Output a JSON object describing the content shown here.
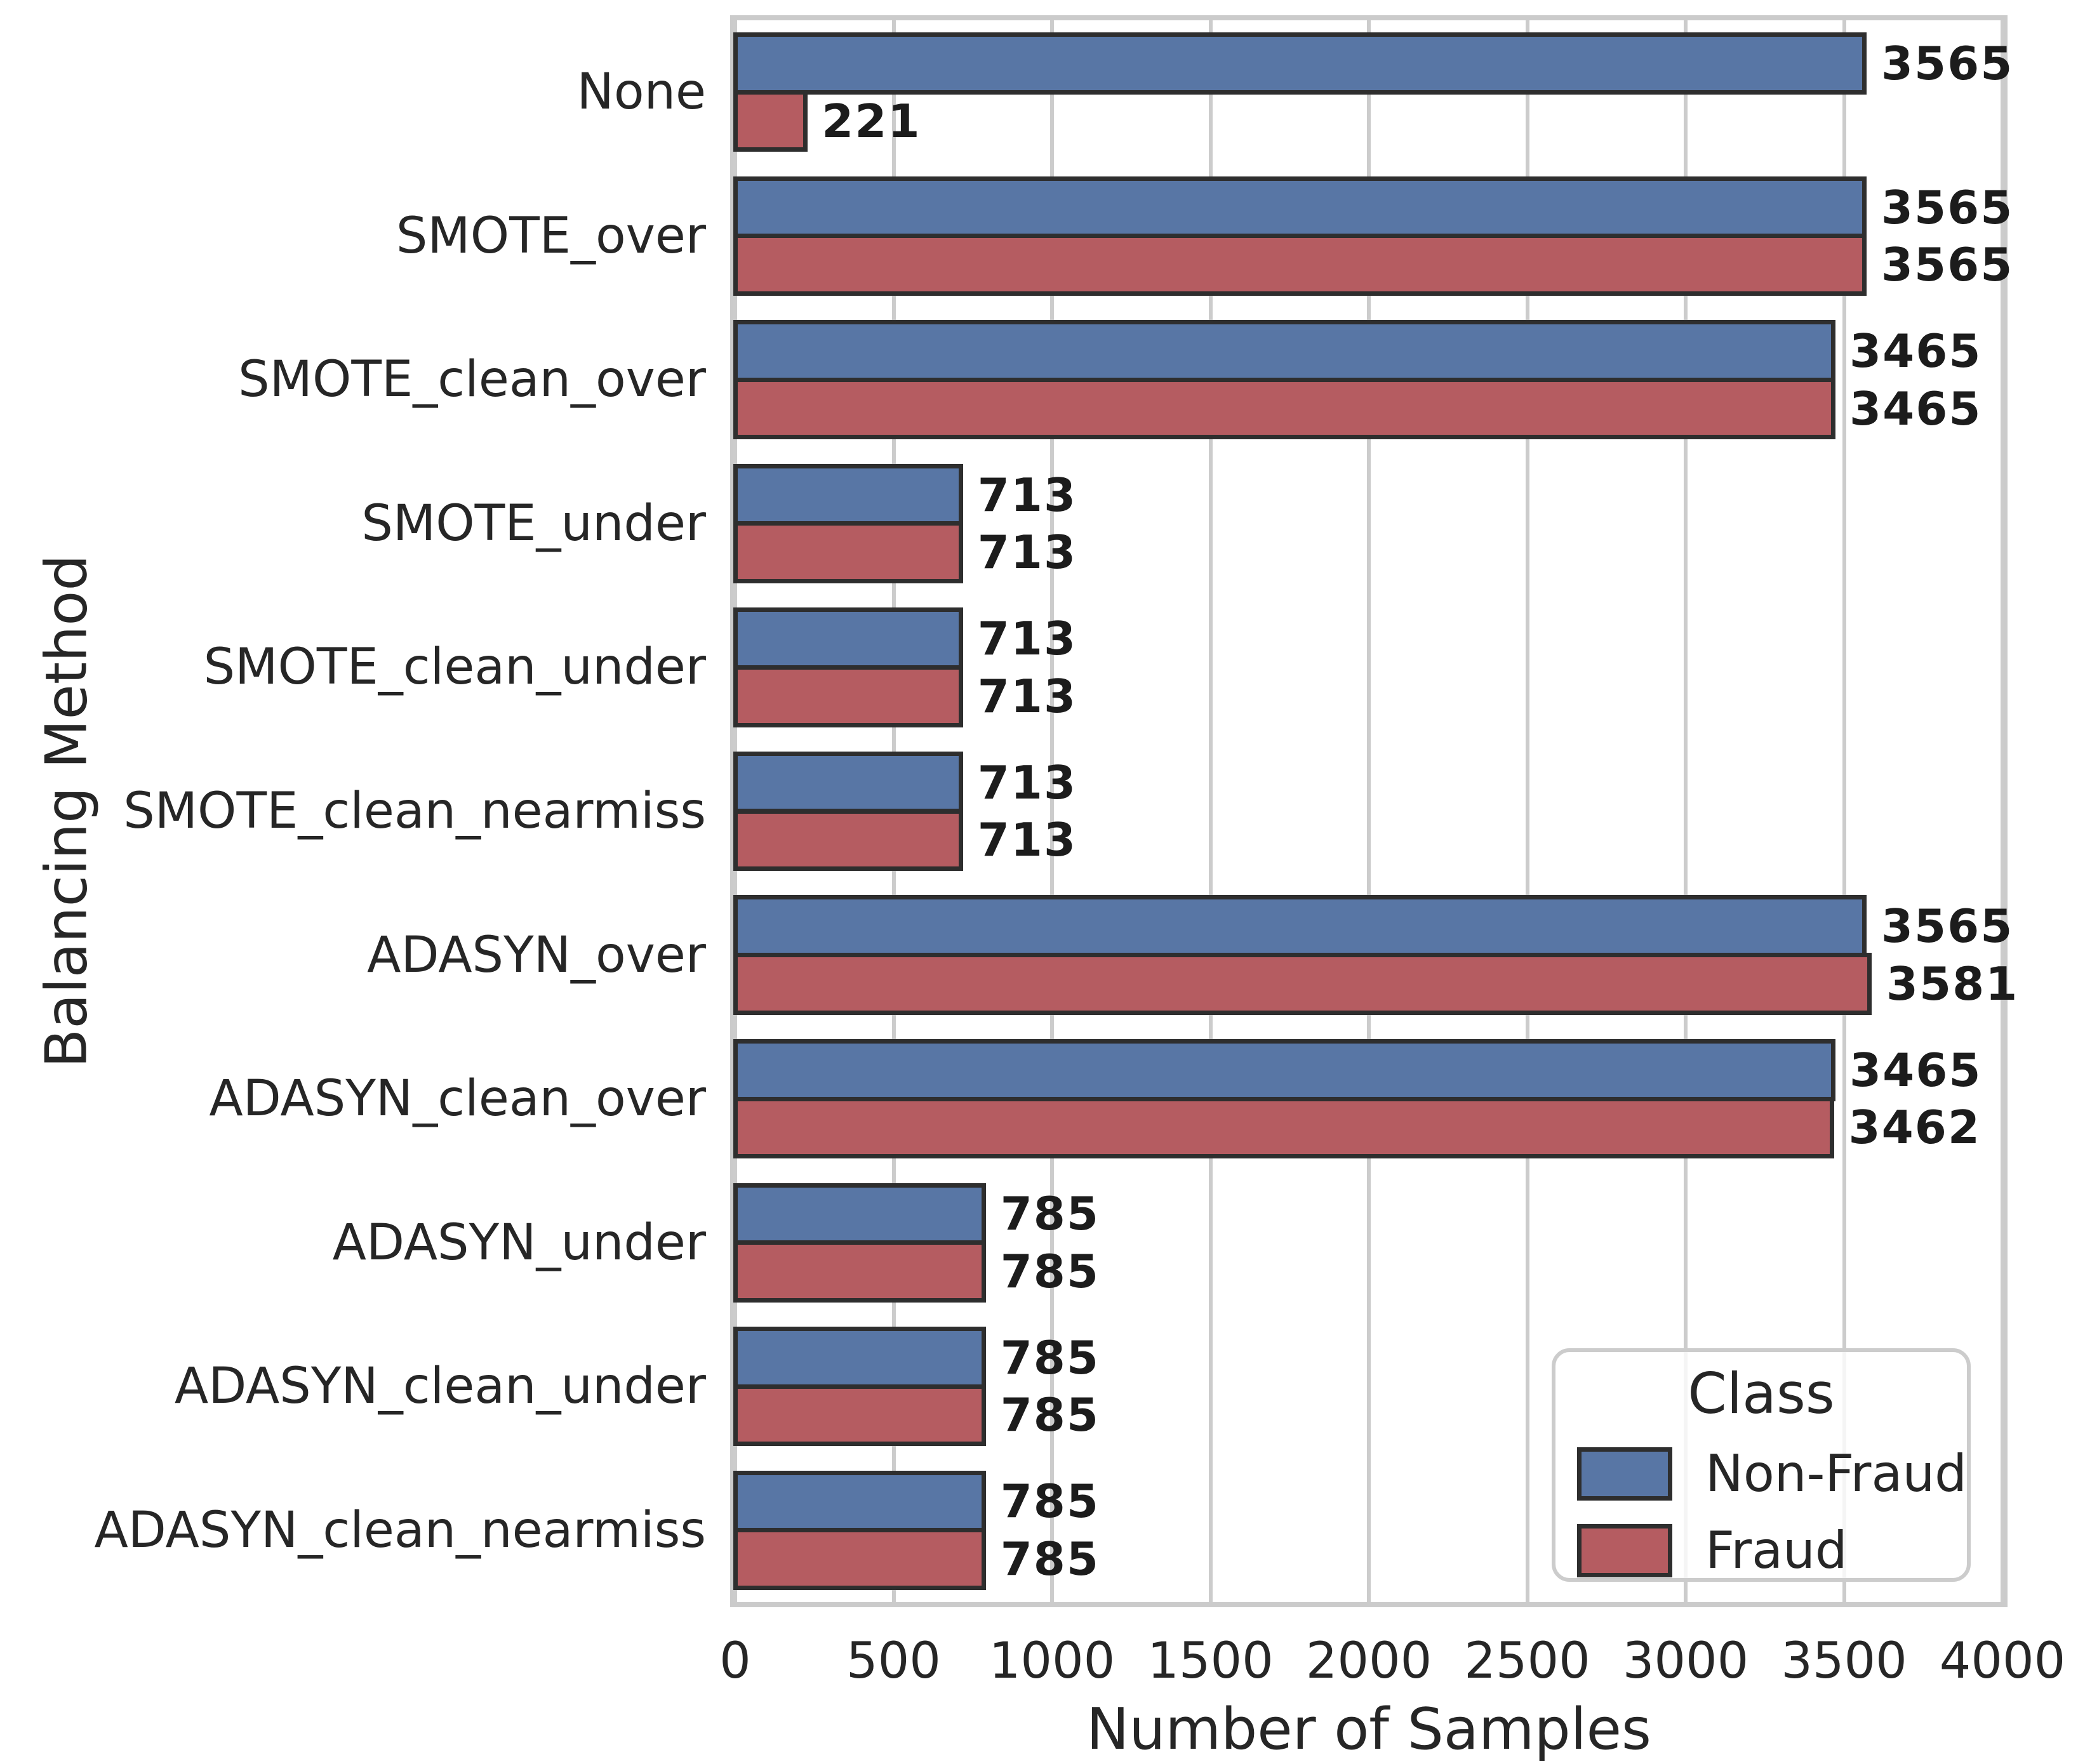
{
  "chart_data": {
    "type": "bar",
    "orientation": "horizontal",
    "title": "",
    "xlabel": "Number of Samples",
    "ylabel": "Balancing Method",
    "xlim": [
      0,
      4000
    ],
    "x_ticks": [
      0,
      500,
      1000,
      1500,
      2000,
      2500,
      3000,
      3500,
      4000
    ],
    "grid": true,
    "bar_value_labels": true,
    "legend_title": "Class",
    "legend_position": "lower right",
    "categories": [
      "None",
      "SMOTE_over",
      "SMOTE_clean_over",
      "SMOTE_under",
      "SMOTE_clean_under",
      "SMOTE_clean_nearmiss",
      "ADASYN_over",
      "ADASYN_clean_over",
      "ADASYN_under",
      "ADASYN_clean_under",
      "ADASYN_clean_nearmiss"
    ],
    "series": [
      {
        "name": "Non-Fraud",
        "color": "#5876A5",
        "values": [
          3565,
          3565,
          3465,
          713,
          713,
          713,
          3565,
          3465,
          785,
          785,
          785
        ]
      },
      {
        "name": "Fraud",
        "color": "#B55C61",
        "values": [
          221,
          3565,
          3465,
          713,
          713,
          713,
          3581,
          3462,
          785,
          785,
          785
        ]
      }
    ],
    "colors": {
      "bar_edge": "#2E2E2E",
      "grid": "#CCCCCC",
      "spine": "#CBCBCB",
      "text": "#262626"
    }
  }
}
